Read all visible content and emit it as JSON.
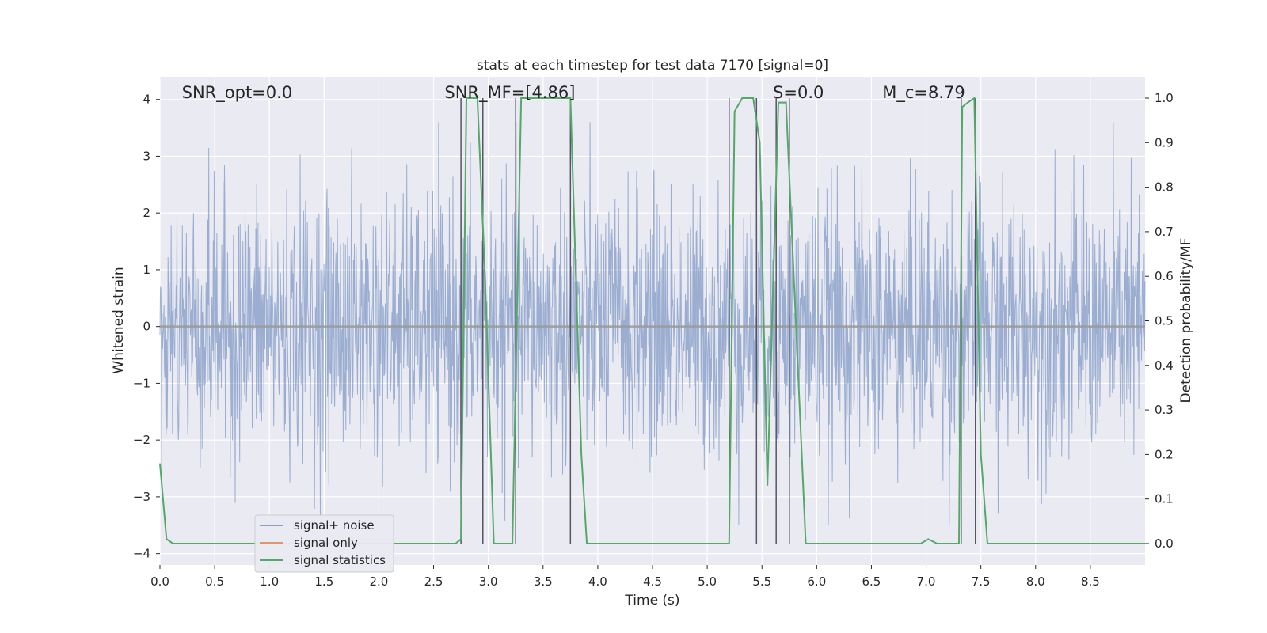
{
  "chart_data": {
    "type": "line",
    "title": "stats at each timestep for test data 7170 [signal=0]",
    "xlabel": "Time (s)",
    "ylabel": "Whitened strain",
    "y2label": "Detection probability/MF",
    "xlim": [
      0,
      9.0
    ],
    "ylim": [
      -4.2,
      4.4
    ],
    "y2lim": [
      -0.048,
      1.048
    ],
    "xticks": [
      0.0,
      0.5,
      1.0,
      1.5,
      2.0,
      2.5,
      3.0,
      3.5,
      4.0,
      4.5,
      5.0,
      5.5,
      6.0,
      6.5,
      7.0,
      7.5,
      8.0,
      8.5
    ],
    "yticks": [
      -4,
      -3,
      -2,
      -1,
      0,
      1,
      2,
      3,
      4
    ],
    "y2ticks": [
      0.0,
      0.1,
      0.2,
      0.3,
      0.4,
      0.5,
      0.6,
      0.7,
      0.8,
      0.9,
      1.0
    ],
    "grid": true,
    "legend_position": "lower-left",
    "annotations": [
      {
        "label": "SNR_opt=0.0",
        "x": 0.2
      },
      {
        "label": "SNR_MF=[4.86]",
        "x": 2.6
      },
      {
        "label": "S=0.0",
        "x": 5.6
      },
      {
        "label": "M_c=8.79",
        "x": 6.6
      }
    ],
    "vertical_markers": [
      2.75,
      2.95,
      3.25,
      3.75,
      5.2,
      5.45,
      5.63,
      5.75,
      7.32,
      7.45
    ],
    "series": [
      {
        "name": "signal+ noise",
        "axis": "left",
        "color": "#4c72b0",
        "style": "noise",
        "amplitude_envelope": [
          -3.5,
          3.6
        ],
        "seed": 7170,
        "n_samples": 2200
      },
      {
        "name": "signal only",
        "axis": "left",
        "color": "#dd8452",
        "x": [
          0,
          9.0
        ],
        "y": [
          0,
          0
        ]
      },
      {
        "name": "signal statistics",
        "axis": "right",
        "color": "#55a868",
        "x": [
          0.0,
          0.06,
          0.12,
          2.7,
          2.75,
          2.8,
          2.9,
          2.97,
          3.05,
          3.1,
          3.22,
          3.3,
          3.5,
          3.75,
          3.85,
          3.9,
          5.2,
          5.25,
          5.32,
          5.42,
          5.48,
          5.55,
          5.65,
          5.72,
          5.9,
          6.95,
          7.02,
          7.1,
          7.3,
          7.33,
          7.38,
          7.44,
          7.5,
          7.56,
          9.0
        ],
        "y": [
          0.18,
          0.01,
          0.0,
          0.0,
          0.01,
          1.0,
          1.0,
          0.6,
          0.0,
          0.0,
          0.0,
          1.0,
          1.0,
          1.0,
          0.2,
          0.0,
          0.0,
          0.97,
          1.0,
          1.0,
          0.9,
          0.13,
          0.99,
          0.99,
          0.0,
          0.0,
          0.01,
          0.0,
          0.0,
          0.98,
          0.99,
          1.0,
          0.2,
          0.0,
          0.0
        ]
      }
    ]
  }
}
